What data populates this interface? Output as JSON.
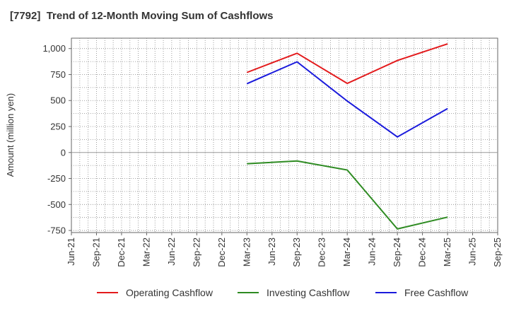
{
  "chart_data": {
    "type": "line",
    "title": "[7792]  Trend of 12-Month Moving Sum of Cashflows",
    "xlabel": "",
    "ylabel": "Amount (million yen)",
    "categories": [
      "Jun-21",
      "Sep-21",
      "Dec-21",
      "Mar-22",
      "Jun-22",
      "Sep-22",
      "Dec-22",
      "Mar-23",
      "Jun-23",
      "Sep-23",
      "Dec-23",
      "Mar-24",
      "Jun-24",
      "Sep-24",
      "Dec-24",
      "Mar-25",
      "Jun-25",
      "Sep-25"
    ],
    "ylim": [
      -770,
      1100
    ],
    "yticks": [
      1000,
      750,
      500,
      250,
      0,
      -250,
      -500,
      -750
    ],
    "ytick_labels": [
      "1,000",
      "750",
      "500",
      "250",
      "0",
      "-250",
      "-500",
      "-750"
    ],
    "grid": true,
    "legend_position": "bottom",
    "series": [
      {
        "name": "Operating Cashflow",
        "color": "#e31a1c",
        "x": [
          "Mar-23",
          "Sep-23",
          "Mar-24",
          "Sep-24",
          "Mar-25"
        ],
        "values": [
          770,
          955,
          665,
          885,
          1045
        ]
      },
      {
        "name": "Investing Cashflow",
        "color": "#2e8b22",
        "x": [
          "Mar-23",
          "Sep-23",
          "Mar-24",
          "Sep-24",
          "Mar-25"
        ],
        "values": [
          -108,
          -82,
          -168,
          -735,
          -622
        ]
      },
      {
        "name": "Free Cashflow",
        "color": "#1a1adc",
        "x": [
          "Mar-23",
          "Sep-23",
          "Mar-24",
          "Sep-24",
          "Mar-25"
        ],
        "values": [
          662,
          872,
          495,
          150,
          423
        ]
      }
    ]
  }
}
